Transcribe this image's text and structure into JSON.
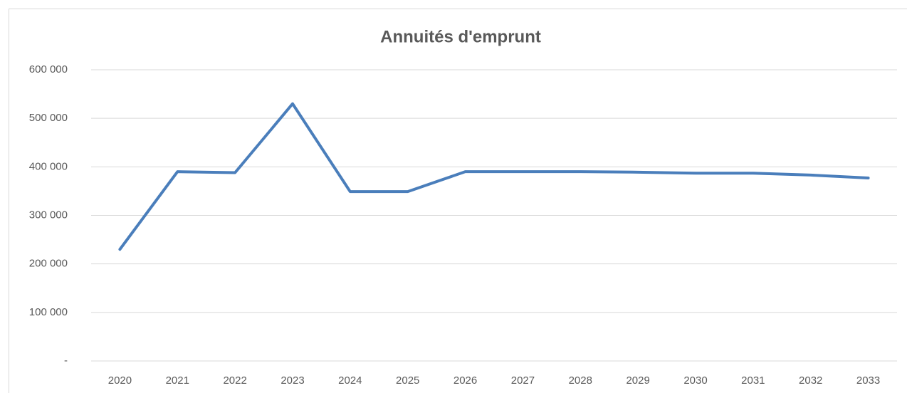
{
  "chart_data": {
    "type": "line",
    "title": "Annuités d'emprunt",
    "categories": [
      "2020",
      "2021",
      "2022",
      "2023",
      "2024",
      "2025",
      "2026",
      "2027",
      "2028",
      "2029",
      "2030",
      "2031",
      "2032",
      "2033"
    ],
    "series": [
      {
        "name": "Annuités d'emprunt",
        "color": "#4a7ebb",
        "values": [
          230000,
          390000,
          388000,
          530000,
          349000,
          349000,
          390000,
          390000,
          390000,
          389000,
          387000,
          387000,
          383000,
          377000
        ]
      }
    ],
    "ylim": [
      0,
      600000
    ],
    "yticks": [
      {
        "value": 0,
        "label": "-"
      },
      {
        "value": 100000,
        "label": "100 000"
      },
      {
        "value": 200000,
        "label": "200 000"
      },
      {
        "value": 300000,
        "label": "300 000"
      },
      {
        "value": 400000,
        "label": "400 000"
      },
      {
        "value": 500000,
        "label": "500 000"
      },
      {
        "value": 600000,
        "label": "600 000"
      }
    ],
    "grid": true
  }
}
